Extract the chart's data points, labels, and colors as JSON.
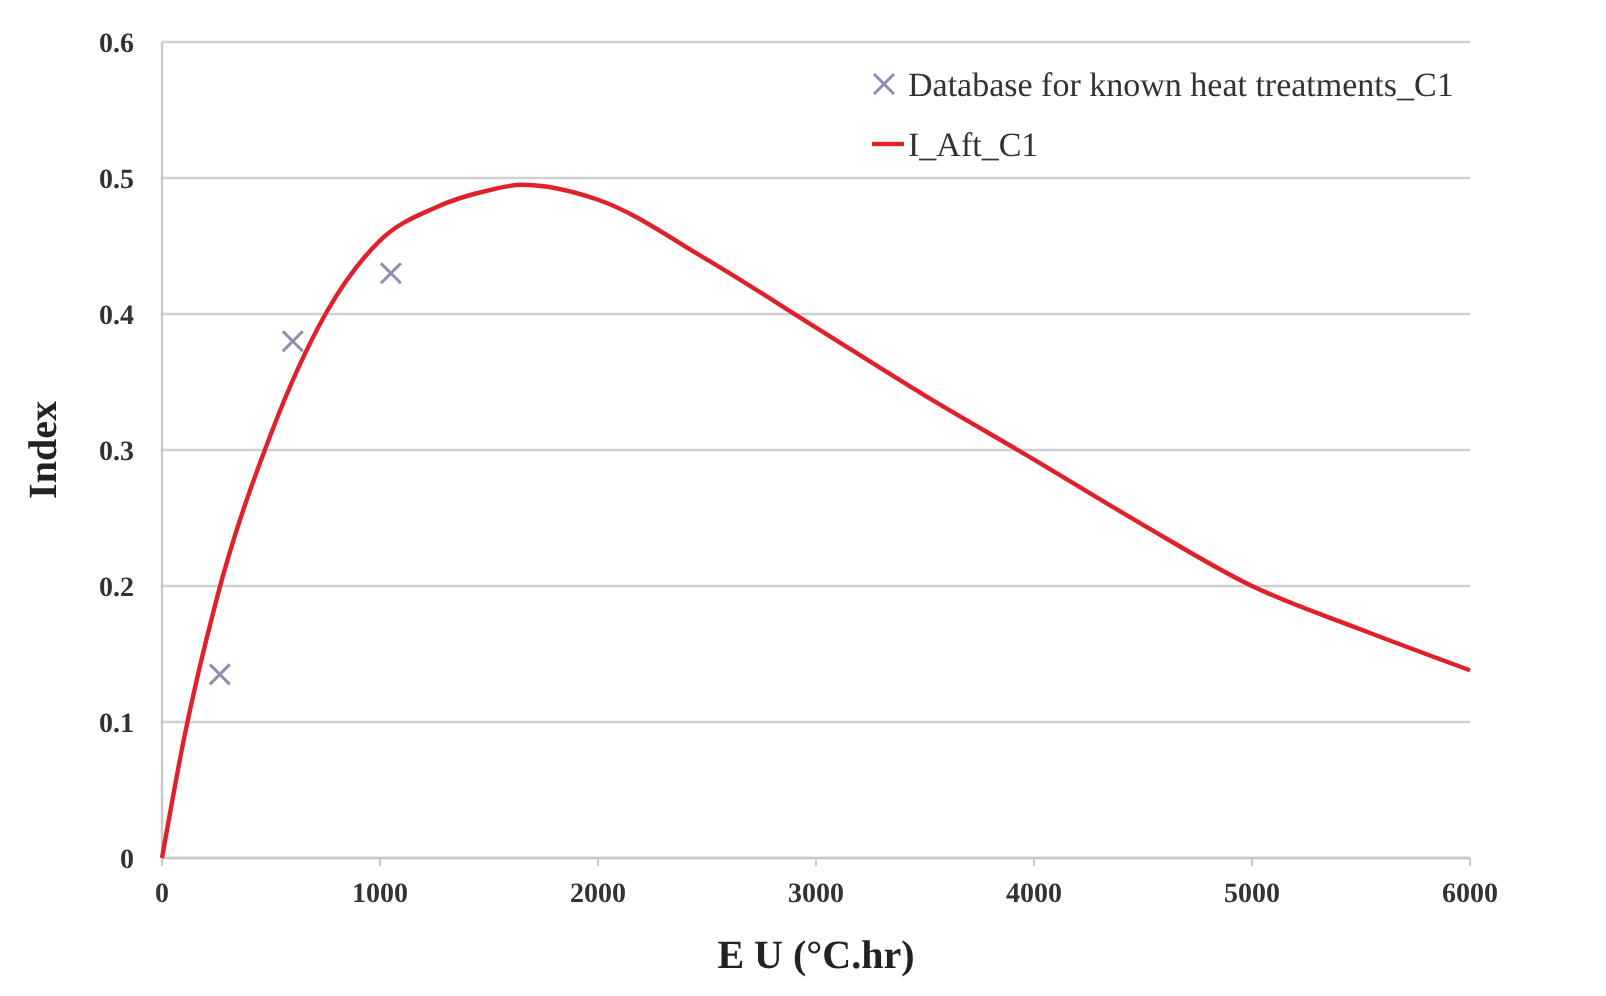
{
  "chart_data": {
    "type": "line",
    "xlabel": "E U (°C.hr)",
    "ylabel": "Index",
    "xlim": [
      0,
      6000
    ],
    "xticks": [
      0,
      1000,
      2000,
      3000,
      4000,
      5000,
      6000
    ],
    "ylim": [
      0,
      0.6
    ],
    "yticks": [
      0,
      0.1,
      0.2,
      0.3,
      0.4,
      0.5,
      0.6
    ],
    "grid": "y",
    "legend": "top right",
    "series": [
      {
        "name": "Database for known heat treatments_C1",
        "type": "scatter",
        "marker": "cross",
        "color": "#8e8eb0",
        "x": [
          265,
          600,
          1050
        ],
        "values": [
          0.135,
          0.38,
          0.43
        ]
      },
      {
        "name": "I_Aft_C1",
        "marker": "none",
        "color": "#e0202a",
        "x": [
          0,
          100,
          250,
          500,
          750,
          1000,
          1250,
          1500,
          1650,
          2000,
          2500,
          3000,
          3500,
          4000,
          4500,
          5000,
          5500,
          6000
        ],
        "values": [
          0,
          0.087,
          0.19,
          0.312,
          0.4,
          0.454,
          0.478,
          0.491,
          0.495,
          0.484,
          0.44,
          0.39,
          0.34,
          0.293,
          0.245,
          0.2,
          0.168,
          0.138
        ]
      }
    ]
  }
}
